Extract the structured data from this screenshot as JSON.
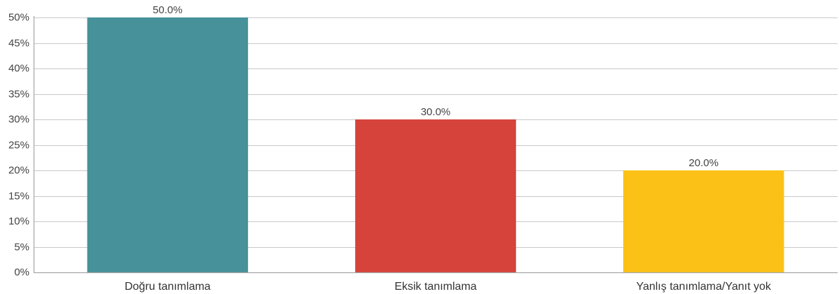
{
  "chart_data": {
    "type": "bar",
    "title": "",
    "xlabel": "",
    "ylabel": "",
    "categories": [
      "Doğru tanımlama",
      "Eksik tanımlama",
      "Yanlış tanımlama/Yanıt yok"
    ],
    "values": [
      50.0,
      30.0,
      20.0
    ],
    "data_labels": [
      "50.0%",
      "30.0%",
      "20.0%"
    ],
    "colors": [
      "#46919A",
      "#D5433B",
      "#FCC117"
    ],
    "ylim": [
      0,
      50
    ],
    "yticks": [
      0,
      5,
      10,
      15,
      20,
      25,
      30,
      35,
      40,
      45,
      50
    ],
    "ytick_labels": [
      "0%",
      "5%",
      "10%",
      "15%",
      "20%",
      "25%",
      "30%",
      "35%",
      "40%",
      "45%",
      "50%"
    ],
    "grid": true,
    "legend": "none",
    "gridline_color": "#C8C8C8",
    "axis_color": "#A6A6A6"
  }
}
